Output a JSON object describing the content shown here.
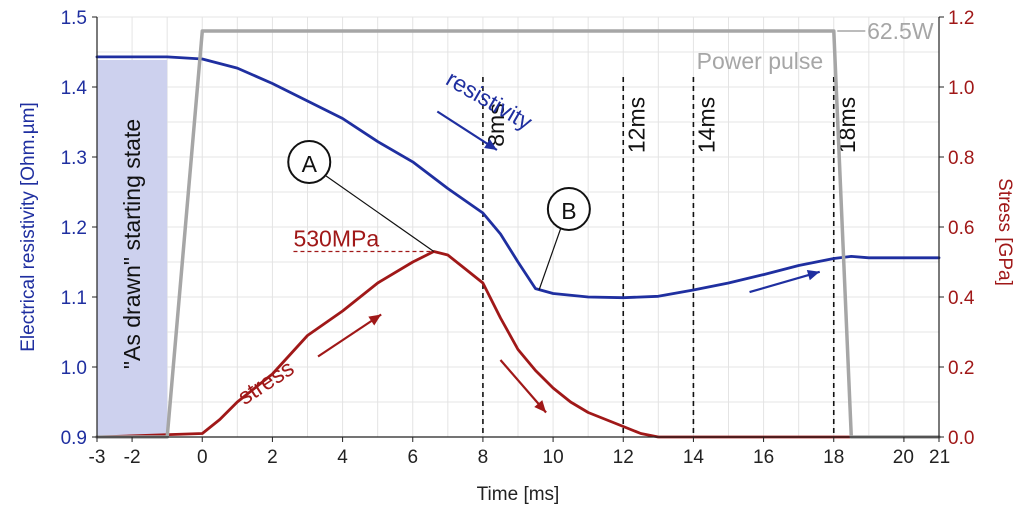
{
  "chart_data": {
    "type": "line",
    "xlabel": "Time [ms]",
    "ylabel_left": "Electrical resistivity [Ohm.µm]",
    "ylabel_right": "Stress [GPa]",
    "xlim": [
      -3,
      21
    ],
    "ylim_left": [
      0.9,
      1.5
    ],
    "ylim_right": [
      0.0,
      1.2
    ],
    "grid": true,
    "x_ticks": [
      -3,
      -2,
      0,
      2,
      4,
      6,
      8,
      10,
      12,
      14,
      16,
      18,
      20,
      21
    ],
    "y_left_ticks": [
      0.9,
      1.0,
      1.1,
      1.2,
      1.3,
      1.4,
      1.5
    ],
    "y_right_ticks": [
      0.0,
      0.2,
      0.4,
      0.6,
      0.8,
      1.0,
      1.2
    ],
    "colors": {
      "resistivity": "#1f2fa0",
      "stress": "#a01818",
      "power": "#a6a6a6",
      "shade": "#cdd1ee",
      "left_axis": "#1f2fa0",
      "right_axis": "#a01818"
    },
    "series": [
      {
        "name": "resistivity",
        "axis": "left",
        "x": [
          -3,
          -1,
          0,
          1,
          2,
          3,
          4,
          5,
          6,
          7,
          8,
          8.5,
          9,
          9.5,
          10,
          11,
          12,
          13,
          14,
          15,
          16,
          17,
          18,
          18.5,
          19,
          20,
          21
        ],
        "y": [
          1.443,
          1.443,
          1.44,
          1.427,
          1.405,
          1.38,
          1.355,
          1.322,
          1.293,
          1.255,
          1.22,
          1.19,
          1.15,
          1.112,
          1.105,
          1.1,
          1.099,
          1.101,
          1.11,
          1.12,
          1.132,
          1.145,
          1.155,
          1.158,
          1.156,
          1.156,
          1.156
        ]
      },
      {
        "name": "stress",
        "axis": "right",
        "x": [
          -3,
          0,
          0.5,
          1,
          2,
          3,
          4,
          5,
          6,
          6.6,
          7,
          7.5,
          8,
          8.5,
          9,
          9.5,
          10,
          10.5,
          11,
          12,
          12.5,
          13,
          14,
          21
        ],
        "y": [
          0.0,
          0.01,
          0.05,
          0.1,
          0.18,
          0.29,
          0.36,
          0.44,
          0.5,
          0.53,
          0.52,
          0.48,
          0.44,
          0.34,
          0.25,
          0.19,
          0.14,
          0.1,
          0.07,
          0.03,
          0.01,
          0.0,
          0.0,
          0.0
        ]
      },
      {
        "name": "Power pulse",
        "axis": "right",
        "x": [
          -3,
          -1,
          0,
          18,
          18.5,
          21
        ],
        "y": [
          0.0,
          0.0,
          1.16,
          1.16,
          0.0,
          0.0
        ]
      }
    ],
    "vlines": [
      {
        "x": 8,
        "label": "8ms"
      },
      {
        "x": 12,
        "label": "12ms"
      },
      {
        "x": 14,
        "label": "14ms"
      },
      {
        "x": 18,
        "label": "18ms"
      }
    ],
    "shaded_region": {
      "x_from": -3,
      "x_to": -1,
      "label": "\"As drawn\" starting state"
    },
    "annotations": {
      "resistivity_label": "resistivity",
      "stress_label": "stress",
      "power_label": "Power pulse",
      "power_value": "62.5W",
      "peak_label": "530MPa",
      "peak_value_gpa": 0.53,
      "point_a": "A",
      "point_b": "B"
    }
  }
}
